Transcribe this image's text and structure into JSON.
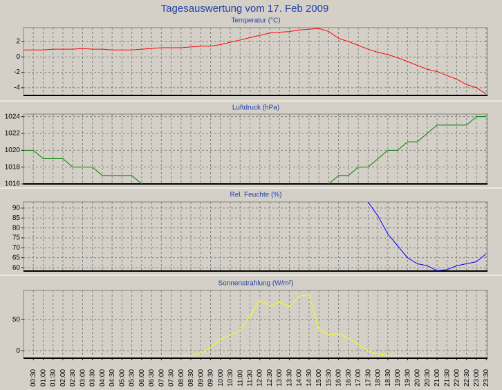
{
  "title": "Tagesauswertung vom 17. Feb 2009",
  "chart_data": [
    {
      "type": "line",
      "title": "Temperatur (°C)",
      "color": "#ff0000",
      "values": [
        0.9,
        0.9,
        0.9,
        1.0,
        1.0,
        1.0,
        1.1,
        1.0,
        1.0,
        0.9,
        0.9,
        0.9,
        1.0,
        1.1,
        1.2,
        1.2,
        1.2,
        1.3,
        1.4,
        1.4,
        1.6,
        1.9,
        2.2,
        2.5,
        2.8,
        3.1,
        3.2,
        3.3,
        3.5,
        3.6,
        3.7,
        3.3,
        2.4,
        2.0,
        1.5,
        1.0,
        0.6,
        0.3,
        -0.1,
        -0.6,
        -1.1,
        -1.6,
        -1.9,
        -2.4,
        -2.9,
        -3.6,
        -4.0,
        -4.8
      ],
      "ylim": [
        -5,
        3.8
      ],
      "yticks": [
        2,
        0,
        -2,
        -4
      ],
      "grid": true
    },
    {
      "type": "line",
      "title": "Luftdruck (hPa)",
      "color": "#008000",
      "values": [
        1020,
        1020,
        1019,
        1019,
        1019,
        1018,
        1018,
        1018,
        1017,
        1017,
        1017,
        1017,
        1016,
        null,
        null,
        null,
        null,
        null,
        null,
        null,
        null,
        null,
        null,
        null,
        null,
        null,
        null,
        null,
        null,
        null,
        null,
        1016,
        1017,
        1017,
        1018,
        1018,
        1019,
        1020,
        1020,
        1021,
        1021,
        1022,
        1023,
        1023,
        1023,
        1023,
        1024,
        1024
      ],
      "ylim": [
        1016,
        1024.3
      ],
      "yticks": [
        1016,
        1018,
        1020,
        1022,
        1024
      ],
      "grid": true
    },
    {
      "type": "line",
      "title": "Rel. Feuchte (%)",
      "color": "#0000ff",
      "values": [
        null,
        null,
        null,
        null,
        null,
        null,
        null,
        null,
        null,
        null,
        null,
        null,
        null,
        null,
        null,
        null,
        null,
        null,
        null,
        null,
        null,
        null,
        null,
        null,
        null,
        null,
        null,
        null,
        null,
        null,
        null,
        null,
        null,
        null,
        null,
        93,
        86,
        77,
        71,
        65,
        62,
        61,
        58.5,
        59,
        61,
        62,
        63,
        67
      ],
      "ylim": [
        58.3,
        93.1
      ],
      "yticks": [
        60,
        65,
        70,
        75,
        80,
        85,
        90
      ],
      "grid": true
    },
    {
      "type": "line",
      "title": "Sonnenstrahlung (W/m²)",
      "color": "#ffff00",
      "categories": [
        null,
        "00:30",
        "01:00",
        "01:30",
        "02:00",
        "02:30",
        "03:00",
        "03:30",
        "04:00",
        "04:30",
        "05:00",
        "05:30",
        "06:00",
        "06:30",
        "07:00",
        "07:30",
        "08:00",
        "08:30",
        "09:00",
        "09:30",
        "10:00",
        "10:30",
        "11:00",
        "11:30",
        "12:00",
        "12:30",
        "13:00",
        "13:30",
        "14:00",
        "14:30",
        "15:00",
        "15:30",
        "16:00",
        "16:30",
        "17:00",
        "17:30",
        "18:00",
        "18:30",
        "19:00",
        "19:30",
        "20:00",
        "20:30",
        "21:00",
        "21:30",
        "22:00",
        "22:30",
        "23:00",
        "23:30"
      ],
      "values": [
        -8,
        -8,
        -8,
        -8,
        -8,
        -8,
        -8,
        -8,
        -8,
        -8,
        -8,
        -8,
        -8,
        -8,
        -8,
        -8,
        -8,
        -8,
        -4,
        5,
        18,
        25,
        33,
        55,
        82,
        72,
        78,
        70,
        88,
        90,
        35,
        25,
        28,
        20,
        10,
        0,
        -5,
        -7,
        -8,
        -8,
        -8,
        -8,
        -8,
        null,
        null,
        null,
        null,
        null
      ],
      "ylim": [
        -12,
        97
      ],
      "yticks": [
        0,
        50
      ],
      "grid": true
    }
  ]
}
